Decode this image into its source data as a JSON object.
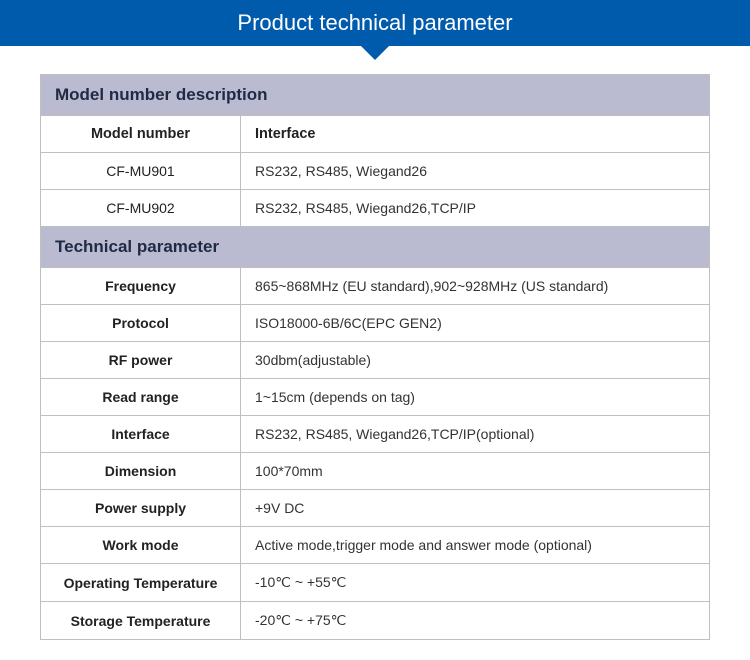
{
  "banner": {
    "title": "Product technical parameter"
  },
  "section_model": {
    "title": "Model number description",
    "head_label": "Model number",
    "head_value": "Interface",
    "rows": [
      {
        "label": "CF-MU901",
        "value": "RS232, RS485, Wiegand26"
      },
      {
        "label": "CF-MU902",
        "value": "RS232, RS485, Wiegand26,TCP/IP"
      }
    ]
  },
  "section_tech": {
    "title": "Technical parameter",
    "rows": [
      {
        "label": "Frequency",
        "value": "865~868MHz (EU standard),902~928MHz (US standard)"
      },
      {
        "label": "Protocol",
        "value": "ISO18000-6B/6C(EPC GEN2)"
      },
      {
        "label": "RF power",
        "value": "30dbm(adjustable)"
      },
      {
        "label": "Read range",
        "value": "1~15cm (depends on tag)"
      },
      {
        "label": "Interface",
        "value": "RS232, RS485, Wiegand26,TCP/IP(optional)"
      },
      {
        "label": "Dimension",
        "value": "100*70mm"
      },
      {
        "label": "Power supply",
        "value": "+9V DC"
      },
      {
        "label": "Work mode",
        "value": "Active mode,trigger mode and answer mode (optional)"
      },
      {
        "label": "Operating Temperature",
        "value": "-10℃ ~ +55℃"
      },
      {
        "label": "Storage Temperature",
        "value": "  -20℃ ~ +75℃"
      }
    ]
  },
  "colors": {
    "banner_bg": "#005bac",
    "banner_fg": "#ffffff",
    "section_bg": "#babbd1",
    "border": "#bfbfbf",
    "text": "#222222"
  }
}
